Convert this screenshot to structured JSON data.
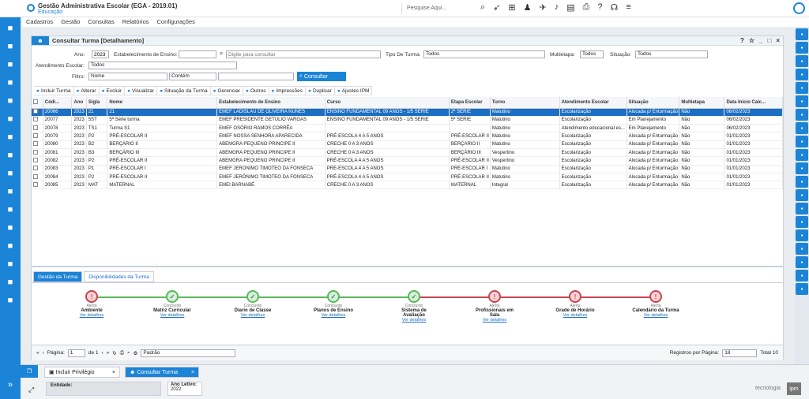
{
  "app": {
    "title": "Gestão Administrativa Escolar (EGA - 2019.01)",
    "subtitle": "Educação",
    "logo": "ipm",
    "search_placeholder": "Pesquise Aqui..."
  },
  "menu": [
    "Cadastros",
    "Gestão",
    "Consultas",
    "Relatórios",
    "Configurações"
  ],
  "panel": {
    "title": "Consultar Turma",
    "subtitle": "[Detalhamento]"
  },
  "filters": {
    "ano_label": "Ano:",
    "ano_value": "2023",
    "estab_label": "Estabelecimento de Ensino:",
    "estab_placeholder": "Digite para consultar",
    "tipo_label": "Tipo De Turma:",
    "tipo_value": "Todos",
    "multi_label": "Multietapa:",
    "multi_value": "Todos",
    "sit_label": "Situação:",
    "sit_value": "Todos",
    "atend_label": "Atendimento Escolar:",
    "atend_value": "Todos",
    "filtro_label": "Filtro:",
    "filtro_field": "Nome",
    "filtro_op": "Contém",
    "consultar": "Consultar"
  },
  "toolbar": [
    "Incluir Turma",
    "Alterar",
    "Excluir",
    "Visualizar",
    "Situação da Turma",
    "Gerenciar",
    "Outros",
    "Impressões",
    "Duplicar",
    "Ajustes IPM"
  ],
  "columns": [
    "Códi...",
    "Ano",
    "Sigla",
    "Nome",
    "Estabelecimento de Ensino",
    "Curso",
    "Etapa Escolar",
    "Turno",
    "Atendimento Escolar",
    "Situação",
    "Multietapa",
    "Data Início Calc..."
  ],
  "rows": [
    [
      "20066",
      "2023",
      "21",
      "21",
      "EMEF LADISLAU DE OLIVEIRA NUNES",
      "ENSINO FUNDAMENTAL 09 ANOS - 1/5 SÉRIE",
      "2ª SÉRIE",
      "Matutino",
      "Escolarização",
      "Alocada p/ Enturmação",
      "Não",
      "06/02/2023"
    ],
    [
      "20077",
      "2023",
      "5ST",
      "5ª Série turma",
      "EMEF PRESIDENTE GETÚLIO VARGAS",
      "ENSINO FUNDAMENTAL 09 ANOS - 1/5 SÉRIE",
      "5ª SÉRIE",
      "Matutino",
      "Escolarização",
      "Em Planejamento",
      "Não",
      "06/02/2023"
    ],
    [
      "20078",
      "2023",
      "TS1",
      "Turma S1",
      "EMEF OSÓRIO RAMOS CORRÊA",
      "",
      "",
      "Matutino",
      "Atendimento educacional es...",
      "Em Planejamento",
      "Não",
      "06/02/2023"
    ],
    [
      "20079",
      "2023",
      "P2",
      "PRÉ-ESCOLAR II",
      "EMEF NOSSA SENHORA APARECIDA",
      "PRÉ-ESCOLA 4 A 5 ANOS",
      "PRÉ-ESCOLAR II",
      "Matutino",
      "Escolarização",
      "Alocada p/ Enturmação",
      "Não",
      "01/01/2023"
    ],
    [
      "20080",
      "2023",
      "B2",
      "BERÇÁRIO II",
      "ABEMGRA PEQUENO PRINCIPE II",
      "CRECHE 0 A 3 ANOS",
      "BERÇÁRIO II",
      "Matutino",
      "Escolarização",
      "Alocada p/ Enturmação",
      "Não",
      "01/01/2023"
    ],
    [
      "20081",
      "2023",
      "B3",
      "BERÇÁRIO III",
      "ABEMGRA PEQUENO PRINCIPE II",
      "CRECHE 0 A 3 ANOS",
      "BERÇÁRIO III",
      "Vespertino",
      "Escolarização",
      "Alocada p/ Enturmação",
      "Não",
      "01/01/2023"
    ],
    [
      "20082",
      "2023",
      "P2",
      "PRÉ-ESCOLAR II",
      "ABEMGRA PEQUENO PRINCIPE II",
      "PRÉ-ESCOLA 4 A 5 ANOS",
      "PRÉ-ESCOLAR II",
      "Vespertino",
      "Escolarização",
      "Alocada p/ Enturmação",
      "Não",
      "01/01/2023"
    ],
    [
      "20083",
      "2023",
      "P1",
      "PRÉ-ESCOLAR I",
      "EMEF JERÔNIMO TIMOTEO DA FONSECA",
      "PRÉ-ESCOLA 4 A 5 ANOS",
      "PRÉ-ESCOLAR I",
      "Matutino",
      "Escolarização",
      "Alocada p/ Enturmação",
      "Não",
      "01/01/2023"
    ],
    [
      "20084",
      "2023",
      "P2",
      "PRÉ-ESCOLAR II",
      "EMEF JERÔNIMO TIMOTEO DA FONSECA",
      "PRÉ-ESCOLA 4 A 5 ANOS",
      "PRÉ-ESCOLAR II",
      "Matutino",
      "Escolarização",
      "Alocada p/ Enturmação",
      "Não",
      "01/01/2023"
    ],
    [
      "20085",
      "2023",
      "MAT",
      "MATERNAL",
      "EMEI BARNABÉ",
      "CRECHE 0 A 3 ANOS",
      "MATERNAL",
      "Integral",
      "Escolarização",
      "Alocada p/ Enturmação",
      "Não",
      "01/01/2023"
    ]
  ],
  "detail_tabs": [
    "Gestão da Turma",
    "Disponibilidades da Turma"
  ],
  "steps": [
    {
      "status": "Alerta",
      "name": "Ambiente",
      "link": "Ver detalhes",
      "state": "al"
    },
    {
      "status": "Concluído",
      "name": "Matriz Curricular",
      "link": "Ver detalhes",
      "state": "ok"
    },
    {
      "status": "Concluído",
      "name": "Diario de Classe",
      "link": "Ver detalhes",
      "state": "ok"
    },
    {
      "status": "Concluído",
      "name": "Planos de Ensino",
      "link": "Ver detalhes",
      "state": "ok"
    },
    {
      "status": "Concluído",
      "name": "Sistema de Avaliação",
      "link": "Ver detalhes",
      "state": "ok"
    },
    {
      "status": "Alerta",
      "name": "Profissionais em Sala",
      "link": "Ver detalhes",
      "state": "al"
    },
    {
      "status": "Alerta",
      "name": "Grade de Horário",
      "link": "Ver detalhes",
      "state": "al"
    },
    {
      "status": "Alerta",
      "name": "Calendário da Turma",
      "link": "Ver detalhes",
      "state": "al"
    }
  ],
  "pager": {
    "page_label": "Página:",
    "page": "1",
    "of": "de 1",
    "layout": "Padrão",
    "per_page_label": "Registros por Página:",
    "per_page": "18",
    "total": "Total 10"
  },
  "bottom_tabs": [
    "Incluir Privilégio",
    "Consultar Turma"
  ],
  "footer": {
    "entidade_label": "Entidade:",
    "ano_label": "Ano Letivo:",
    "ano_value": "2022",
    "brand": "tecnologia",
    "brand_logo": "ipm"
  }
}
